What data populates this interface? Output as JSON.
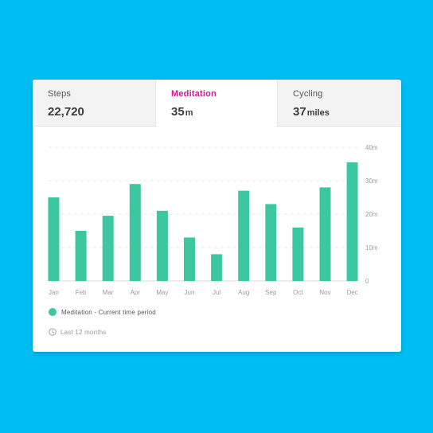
{
  "tabs": [
    {
      "label": "Steps",
      "value": "22,720",
      "unit": ""
    },
    {
      "label": "Meditation",
      "value": "35",
      "unit": "m"
    },
    {
      "label": "Cycling",
      "value": "37",
      "unit": "miles"
    }
  ],
  "active_tab": 1,
  "colors": {
    "background": "#00BDF2",
    "accent": "#D21A8B",
    "bar": "#3CC7A1"
  },
  "chart_data": {
    "type": "bar",
    "categories": [
      "Jan",
      "Feb",
      "Mar",
      "Apr",
      "May",
      "Jun",
      "Jul",
      "Aug",
      "Sep",
      "Oct",
      "Nov",
      "Dec"
    ],
    "values": [
      25,
      15,
      19.5,
      29,
      21,
      13,
      8,
      27,
      23,
      16,
      28,
      35.5
    ],
    "y_ticks": [
      "0",
      "10m",
      "20m",
      "30m",
      "40m"
    ],
    "ylim": [
      0,
      40
    ],
    "grid": true,
    "y_axis_position": "right"
  },
  "legend": {
    "label": "Meditation - Current time period"
  },
  "period": {
    "label": "Last 12 months",
    "icon": "clock-icon"
  }
}
